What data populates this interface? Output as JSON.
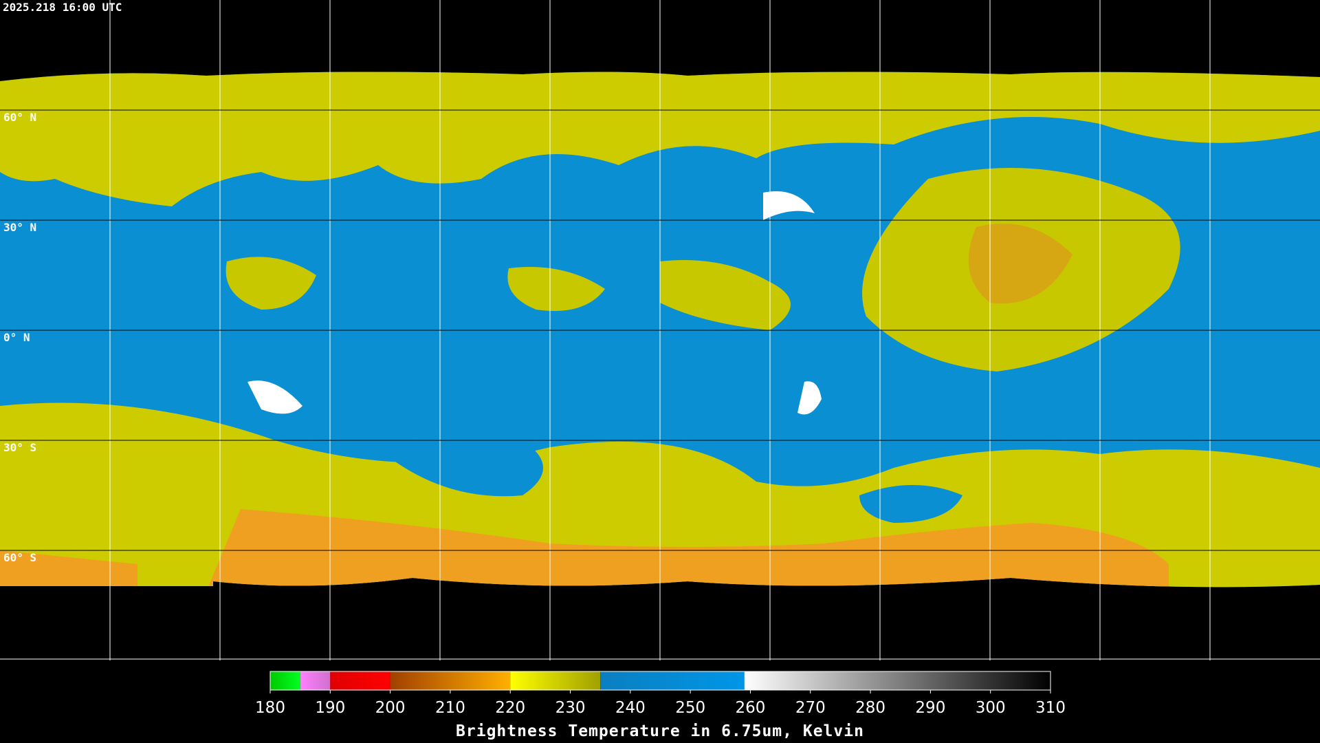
{
  "header": {
    "timestamp": "2025.218 16:00 UTC"
  },
  "map": {
    "lat_labels": [
      "60° N",
      "30° N",
      "0° N",
      "30° S",
      "60° S"
    ]
  },
  "colorbar": {
    "range": [
      180,
      310
    ],
    "ticks": [
      180,
      190,
      200,
      210,
      220,
      230,
      240,
      250,
      260,
      270,
      280,
      290,
      300,
      310
    ],
    "label": "Brightness Temperature in 6.75um, Kelvin",
    "segments": [
      {
        "range": [
          180,
          185
        ],
        "colors": [
          "#00c800",
          "#00ff20"
        ]
      },
      {
        "range": [
          185,
          190
        ],
        "colors": [
          "#ff80ff",
          "#d070d0"
        ]
      },
      {
        "range": [
          190,
          200
        ],
        "colors": [
          "#e00000",
          "#ff0000"
        ]
      },
      {
        "range": [
          200,
          220
        ],
        "colors": [
          "#a04000",
          "#ffb000"
        ]
      },
      {
        "range": [
          220,
          235
        ],
        "colors": [
          "#ffff00",
          "#a0a000"
        ]
      },
      {
        "range": [
          235,
          259
        ],
        "colors": [
          "#0a7fc0",
          "#0096e8"
        ]
      },
      {
        "range": [
          259,
          310
        ],
        "colors": [
          "#ffffff",
          "#000000"
        ]
      }
    ]
  }
}
